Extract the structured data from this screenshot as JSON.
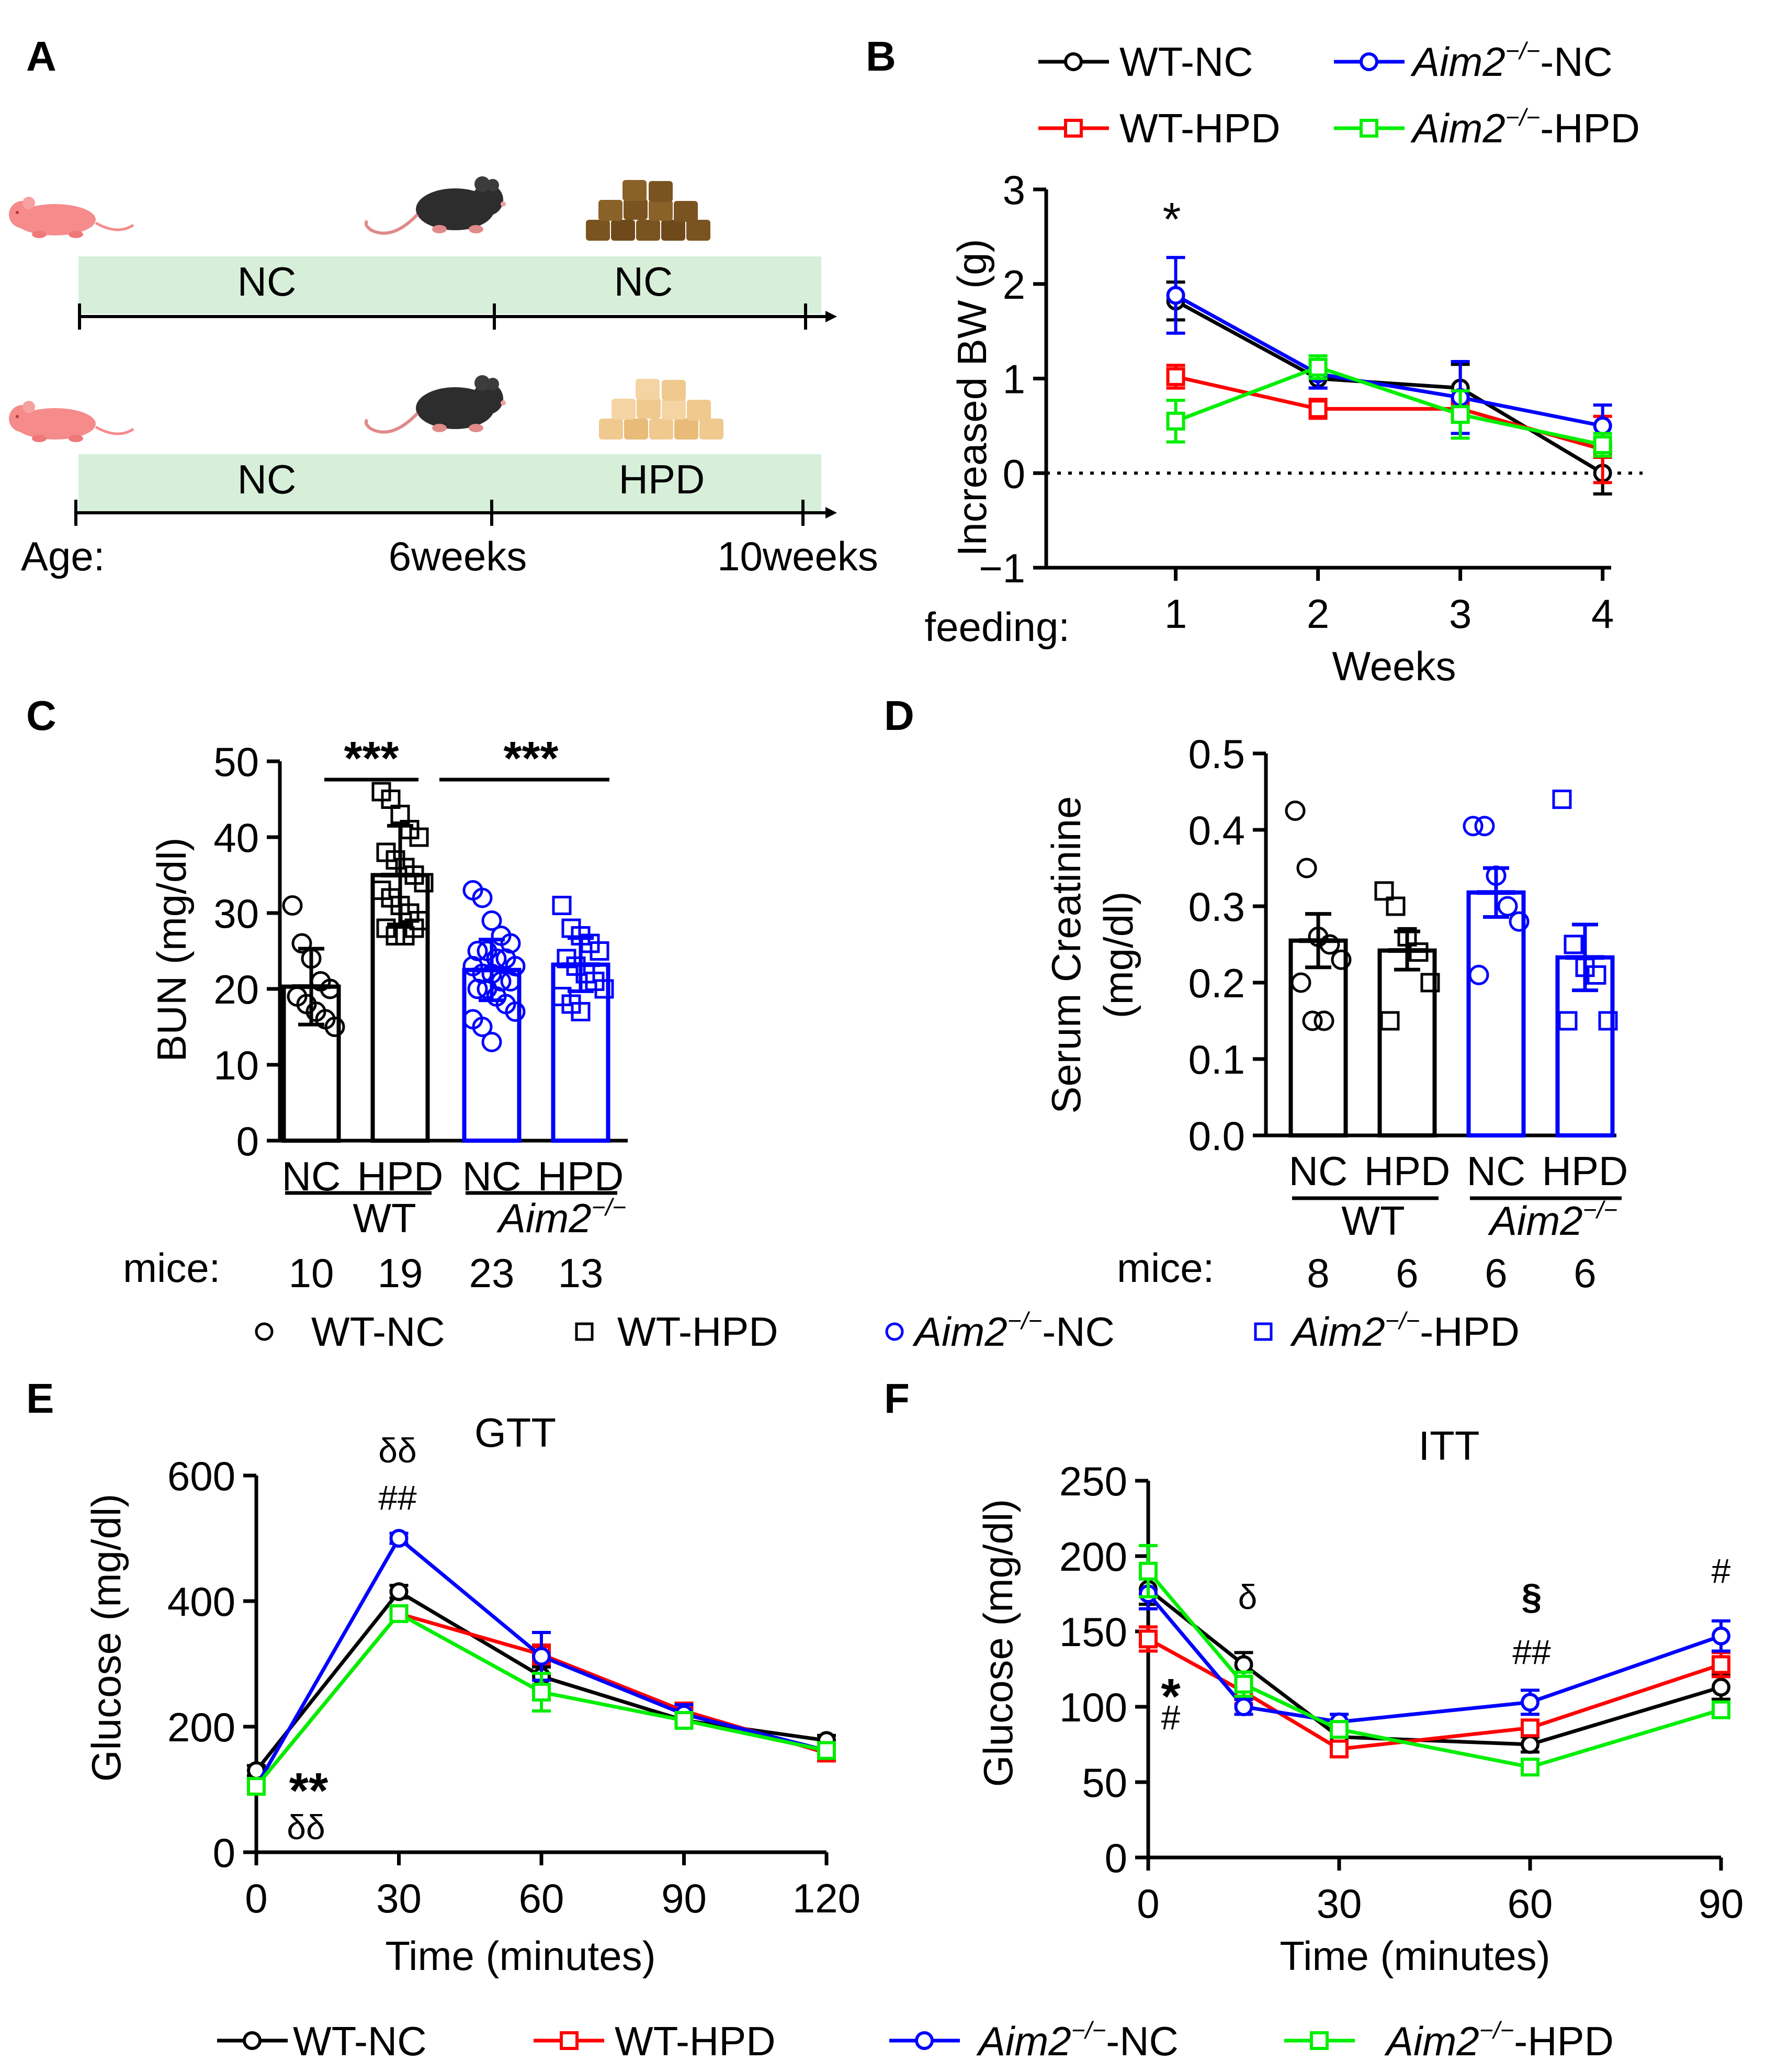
{
  "panel_labels": {
    "A": "A",
    "B": "B",
    "C": "C",
    "D": "D",
    "E": "E",
    "F": "F"
  },
  "colors": {
    "wt_nc": "#000000",
    "wt_hpd": "#ff0000",
    "aim_nc": "#0000ff",
    "aim_hpd": "#00ee00",
    "band": "#d7efd9",
    "mouse_pink": "#f58b8b",
    "chow_dark": "#7a5420",
    "chow_light": "#f0c98f"
  },
  "panel_a": {
    "rows": [
      {
        "phase1": "NC",
        "phase2": "NC",
        "chow": "dark"
      },
      {
        "phase1": "NC",
        "phase2": "HPD",
        "chow": "light"
      }
    ],
    "age_label": "Age:",
    "tick_6": "6weeks",
    "tick_10": "10weeks"
  },
  "legend_groups": {
    "wt_nc": "WT-NC",
    "wt_hpd": "WT-HPD",
    "aim_gene": "Aim2",
    "aim_sup": "−/−",
    "aim_nc_suffix": "-NC",
    "aim_hpd_suffix": "-HPD"
  },
  "panel_b": {
    "asterisk": "*",
    "feeding_label": "feeding:",
    "chart_data": {
      "type": "line",
      "xlabel": "Weeks",
      "ylabel": "Increased BW (g)",
      "x": [
        1,
        2,
        3,
        4
      ],
      "xticks": [
        "1",
        "2",
        "3",
        "4"
      ],
      "ylim": [
        -1,
        3
      ],
      "yticks": [
        -1,
        0,
        1,
        2,
        3
      ],
      "ytick_labels": [
        "−1",
        "0",
        "1",
        "2",
        "3"
      ],
      "reference_line": 0,
      "series": [
        {
          "name": "WT-NC",
          "key": "wt_nc",
          "values": [
            1.82,
            1.0,
            0.9,
            0.0
          ],
          "err": [
            0.2,
            0.1,
            0.25,
            0.22
          ]
        },
        {
          "name": "WT-HPD",
          "key": "wt_hpd",
          "values": [
            1.02,
            0.68,
            0.68,
            0.25
          ],
          "err": [
            0.12,
            0.1,
            0.1,
            0.35
          ]
        },
        {
          "name": "Aim2−/−-NC",
          "key": "aim_nc",
          "values": [
            1.88,
            1.05,
            0.8,
            0.5
          ],
          "err": [
            0.4,
            0.15,
            0.38,
            0.22
          ]
        },
        {
          "name": "Aim2−/−-HPD",
          "key": "aim_hpd",
          "values": [
            0.55,
            1.12,
            0.62,
            0.3
          ],
          "err": [
            0.22,
            0.12,
            0.25,
            0.12
          ]
        }
      ]
    }
  },
  "panel_c": {
    "sig_left": "***",
    "sig_right": "***",
    "mice_label": "mice:",
    "group_wt": "WT",
    "chart_data": {
      "type": "bar",
      "ylabel": "BUN (mg/dl)",
      "ylim": [
        0,
        50
      ],
      "yticks": [
        0,
        10,
        20,
        30,
        40,
        50
      ],
      "categories": [
        "NC",
        "HPD",
        "NC",
        "HPD"
      ],
      "n_mice": [
        "10",
        "19",
        "23",
        "13"
      ],
      "values": [
        20.3,
        35.0,
        22.5,
        23.2
      ],
      "err": [
        5.0,
        6.5,
        4.0,
        3.5
      ],
      "points": [
        [
          31,
          26,
          24,
          21,
          20,
          19,
          18,
          17,
          16,
          15
        ],
        [
          46,
          45,
          43,
          41,
          40,
          38,
          37,
          36,
          35,
          34,
          33,
          32,
          31,
          30,
          29,
          28,
          27,
          27,
          28
        ],
        [
          33,
          32,
          29,
          27,
          26,
          25,
          25,
          24,
          24,
          23,
          23,
          22,
          22,
          21,
          21,
          20,
          20,
          19,
          18,
          17,
          16,
          15,
          13
        ],
        [
          31,
          28,
          27,
          26,
          25,
          24,
          23,
          22,
          21,
          20,
          19,
          18,
          17
        ]
      ],
      "colors": [
        "wt",
        "wt",
        "aim",
        "aim"
      ]
    }
  },
  "panel_d": {
    "mice_label": "mice:",
    "group_wt": "WT",
    "chart_data": {
      "type": "bar",
      "ylabel_line1": "Serum Creatinine",
      "ylabel_line2": "(mg/dl)",
      "ylim": [
        0,
        0.5
      ],
      "yticks": [
        0,
        0.1,
        0.2,
        0.3,
        0.4,
        0.5
      ],
      "ytick_labels": [
        "0.0",
        "0.1",
        "0.2",
        "0.3",
        "0.4",
        "0.5"
      ],
      "categories": [
        "NC",
        "HPD",
        "NC",
        "HPD"
      ],
      "n_mice": [
        "8",
        "6",
        "6",
        "6"
      ],
      "values": [
        0.255,
        0.242,
        0.318,
        0.233
      ],
      "err": [
        0.035,
        0.025,
        0.032,
        0.043
      ],
      "points": [
        [
          0.425,
          0.35,
          0.26,
          0.25,
          0.23,
          0.2,
          0.15,
          0.15
        ],
        [
          0.32,
          0.3,
          0.26,
          0.24,
          0.2,
          0.15
        ],
        [
          0.405,
          0.405,
          0.34,
          0.3,
          0.28,
          0.21
        ],
        [
          0.44,
          0.25,
          0.22,
          0.21,
          0.15,
          0.15
        ]
      ],
      "colors": [
        "wt",
        "wt",
        "aim",
        "aim"
      ]
    }
  },
  "point_legend": {
    "wt_nc": "WT-NC",
    "wt_hpd": "WT-HPD",
    "aim_nc_suffix": "-NC",
    "aim_hpd_suffix": "-HPD"
  },
  "panel_e": {
    "annotations": {
      "top_delta": "δδ",
      "top_hash": "##",
      "low_star": "**",
      "low_delta": "δδ"
    },
    "chart_data": {
      "type": "line",
      "title": "GTT",
      "xlabel": "Time (minutes)",
      "ylabel": "Glucose (mg/dl)",
      "x": [
        0,
        30,
        60,
        90,
        120
      ],
      "xticks": [
        "0",
        "30",
        "60",
        "90",
        "120"
      ],
      "ylim": [
        0,
        600
      ],
      "yticks": [
        0,
        200,
        400,
        600
      ],
      "series": [
        {
          "name": "WT-NC",
          "key": "wt_nc",
          "values": [
            130,
            415,
            280,
            210,
            178
          ],
          "err": [
            8,
            10,
            15,
            10,
            8
          ]
        },
        {
          "name": "WT-HPD",
          "key": "wt_hpd",
          "values": [
            105,
            380,
            315,
            225,
            158
          ],
          "err": [
            8,
            10,
            15,
            10,
            8
          ]
        },
        {
          "name": "Aim2−/−-NC",
          "key": "aim_nc",
          "values": [
            105,
            500,
            312,
            220,
            162
          ],
          "err": [
            8,
            8,
            38,
            15,
            8
          ]
        },
        {
          "name": "Aim2−/−-HPD",
          "key": "aim_hpd",
          "values": [
            105,
            380,
            255,
            210,
            162
          ],
          "err": [
            8,
            10,
            30,
            10,
            8
          ]
        }
      ]
    }
  },
  "panel_f": {
    "annotations": {
      "d15": "δ",
      "star0": "*",
      "hash0": "#",
      "sect60": "§",
      "hash60": "##",
      "hash90": "#"
    },
    "chart_data": {
      "type": "line",
      "title": "ITT",
      "xlabel": "Time (minutes)",
      "ylabel": "Glucose (mg/dl)",
      "x": [
        0,
        15,
        30,
        60,
        90
      ],
      "xticks": [
        "0",
        "30",
        "60",
        "90"
      ],
      "xtick_values": [
        0,
        30,
        60,
        90
      ],
      "ylim": [
        0,
        250
      ],
      "yticks": [
        0,
        50,
        100,
        150,
        200,
        250
      ],
      "series": [
        {
          "name": "WT-NC",
          "key": "wt_nc",
          "values": [
            178,
            128,
            80,
            75,
            113
          ],
          "err": [
            10,
            8,
            5,
            5,
            8
          ]
        },
        {
          "name": "WT-HPD",
          "key": "wt_hpd",
          "values": [
            145,
            110,
            72,
            86,
            128
          ],
          "err": [
            8,
            8,
            5,
            5,
            8
          ]
        },
        {
          "name": "Aim2−/−-NC",
          "key": "aim_nc",
          "values": [
            175,
            100,
            90,
            103,
            147
          ],
          "err": [
            10,
            5,
            5,
            8,
            10
          ]
        },
        {
          "name": "Aim2−/−-HPD",
          "key": "aim_hpd",
          "values": [
            190,
            115,
            85,
            60,
            98
          ],
          "err": [
            17,
            8,
            5,
            5,
            5
          ]
        }
      ]
    }
  },
  "bottom_legend": {
    "wt_nc": "WT-NC",
    "wt_hpd": "WT-HPD",
    "aim_nc_suffix": "-NC",
    "aim_hpd_suffix": "-HPD"
  }
}
